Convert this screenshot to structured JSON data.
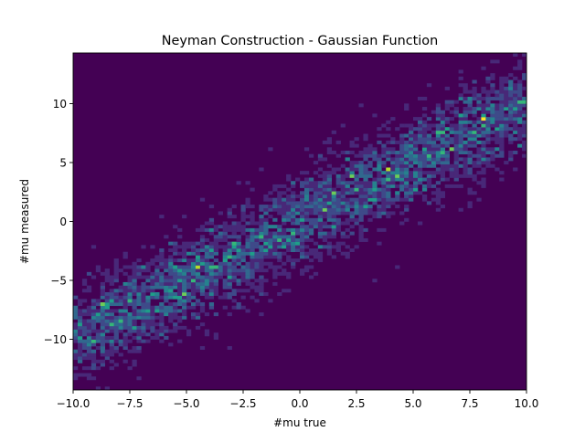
{
  "chart_data": {
    "type": "heatmap",
    "title": "Neyman Construction - Gaussian Function",
    "xlabel": "#mu true",
    "ylabel": "#mu measured",
    "xlim": [
      -10,
      10
    ],
    "ylim": [
      -14.3,
      14.3
    ],
    "xticks": [
      -10,
      -7.5,
      -5,
      -2.5,
      0,
      2.5,
      5,
      7.5,
      10
    ],
    "xtick_labels": [
      "−10.0",
      "−7.5",
      "−5.0",
      "−2.5",
      "0.0",
      "2.5",
      "5.0",
      "7.5",
      "10.0"
    ],
    "yticks": [
      -10,
      -5,
      0,
      5,
      10
    ],
    "ytick_labels": [
      "−10",
      "−5",
      "0",
      "5",
      "10"
    ],
    "colormap": "viridis",
    "background_color": "#440154",
    "bins": {
      "x": 100,
      "y": 100
    },
    "relation": "y = x",
    "band_sigma": 2,
    "max_count": 8,
    "grid": false,
    "legend": "none"
  }
}
